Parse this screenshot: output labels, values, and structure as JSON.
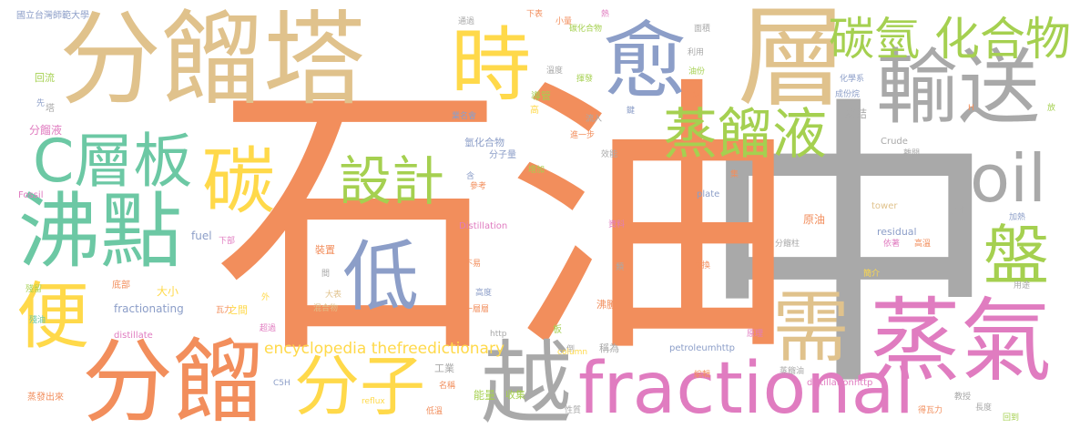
{
  "words": [
    {
      "text": "中",
      "color": "#a9a9a9"
    },
    {
      "text": "石油",
      "color": "#f28e5c"
    },
    {
      "text": "分餾塔",
      "color": "#e0c28c"
    },
    {
      "text": "分餾",
      "color": "#f28e5c"
    },
    {
      "text": "蒸氣",
      "color": "#e07cc0"
    },
    {
      "text": "fractional",
      "color": "#e07cc0"
    },
    {
      "text": "層",
      "color": "#e0c28c"
    },
    {
      "text": "愈",
      "color": "#8c9ec8"
    },
    {
      "text": "時",
      "color": "#ffd94a"
    },
    {
      "text": "輸送",
      "color": "#a9a9a9"
    },
    {
      "text": "沸點",
      "color": "#6cc8a4"
    },
    {
      "text": "C層板",
      "color": "#6cc8a4"
    },
    {
      "text": "碳氫 化合物",
      "color": "#a5d050"
    },
    {
      "text": "蒸餾液",
      "color": "#a5d050"
    },
    {
      "text": "oil",
      "color": "#a9a9a9"
    },
    {
      "text": "碳",
      "color": "#ffd94a"
    },
    {
      "text": "設計",
      "color": "#a5d050"
    },
    {
      "text": "低",
      "color": "#8c9ec8"
    },
    {
      "text": "盤",
      "color": "#a5d050"
    },
    {
      "text": "需",
      "color": "#e0c28c"
    },
    {
      "text": "便",
      "color": "#ffd94a"
    },
    {
      "text": "分子",
      "color": "#ffd94a"
    },
    {
      "text": "越",
      "color": "#a9a9a9"
    },
    {
      "text": "encyclopedia thefreedictionary",
      "color": "#ffd94a"
    },
    {
      "text": "國立台灣師範大學",
      "color": "#8c9ec8"
    },
    {
      "text": "回流",
      "color": "#a5d050"
    },
    {
      "text": "先",
      "color": "#8c9ec8"
    },
    {
      "text": "塔",
      "color": "#a9a9a9"
    },
    {
      "text": "分餾液",
      "color": "#e07cc0"
    },
    {
      "text": "Fossil",
      "color": "#e07cc0"
    },
    {
      "text": "fuel",
      "color": "#8c9ec8"
    },
    {
      "text": "下部",
      "color": "#e07cc0"
    },
    {
      "text": "殘留",
      "color": "#a5d050"
    },
    {
      "text": "底部",
      "color": "#f28e5c"
    },
    {
      "text": "大小",
      "color": "#ffd94a"
    },
    {
      "text": "fractionating",
      "color": "#8c9ec8"
    },
    {
      "text": "瓦力",
      "color": "#f28e5c"
    },
    {
      "text": "之間",
      "color": "#ffd94a"
    },
    {
      "text": "殘油",
      "color": "#6cc8a4"
    },
    {
      "text": "distillate",
      "color": "#e07cc0"
    },
    {
      "text": "C5H",
      "color": "#8c9ec8"
    },
    {
      "text": "蒸發出來",
      "color": "#f28e5c"
    },
    {
      "text": "reflux",
      "color": "#ffd94a"
    },
    {
      "text": "通過",
      "color": "#a9a9a9"
    },
    {
      "text": "小量",
      "color": "#f28e5c"
    },
    {
      "text": "下表",
      "color": "#f28e5c"
    },
    {
      "text": "熱",
      "color": "#e07cc0"
    },
    {
      "text": "碳化合物",
      "color": "#a5d050"
    },
    {
      "text": "溫度",
      "color": "#a9a9a9"
    },
    {
      "text": "揮發",
      "color": "#a5d050"
    },
    {
      "text": "導管",
      "color": "#a5d050"
    },
    {
      "text": "高",
      "color": "#ffd94a"
    },
    {
      "text": "業名會",
      "color": "#8c9ec8"
    },
    {
      "text": "流入",
      "color": "#a9a9a9"
    },
    {
      "text": "鍵",
      "color": "#8c9ec8"
    },
    {
      "text": "進一步",
      "color": "#f28e5c"
    },
    {
      "text": "氫化合物",
      "color": "#8c9ec8"
    },
    {
      "text": "分子量",
      "color": "#8c9ec8"
    },
    {
      "text": "效能",
      "color": "#a9a9a9"
    },
    {
      "text": "增加",
      "color": "#a5d050"
    },
    {
      "text": "參考",
      "color": "#f28e5c"
    },
    {
      "text": "含",
      "color": "#8c9ec8"
    },
    {
      "text": "Distillation",
      "color": "#e07cc0"
    },
    {
      "text": "資料",
      "color": "#e07cc0"
    },
    {
      "text": "不易",
      "color": "#f28e5c"
    },
    {
      "text": "類",
      "color": "#a9a9a9"
    },
    {
      "text": "交換",
      "color": "#f28e5c"
    },
    {
      "text": "裝置",
      "color": "#f28e5c"
    },
    {
      "text": "間",
      "color": "#a9a9a9"
    },
    {
      "text": "大表",
      "color": "#e0c28c"
    },
    {
      "text": "混合物",
      "color": "#e0c28c"
    },
    {
      "text": "高度",
      "color": "#8c9ec8"
    },
    {
      "text": "一層層",
      "color": "#f28e5c"
    },
    {
      "text": "沸騰",
      "color": "#f28e5c"
    },
    {
      "text": "超過",
      "color": "#e07cc0"
    },
    {
      "text": "外",
      "color": "#ffd94a"
    },
    {
      "text": "http",
      "color": "#a9a9a9"
    },
    {
      "text": "板",
      "color": "#a5d050"
    },
    {
      "text": "稱為",
      "color": "#a9a9a9"
    },
    {
      "text": "倒",
      "color": "#a9a9a9"
    },
    {
      "text": "column",
      "color": "#ffd94a"
    },
    {
      "text": "工業",
      "color": "#a9a9a9"
    },
    {
      "text": "能量",
      "color": "#a5d050"
    },
    {
      "text": "收集",
      "color": "#a5d050"
    },
    {
      "text": "名稱",
      "color": "#f28e5c"
    },
    {
      "text": "低溫",
      "color": "#f28e5c"
    },
    {
      "text": "性質",
      "color": "#a9a9a9"
    },
    {
      "text": "編輯",
      "color": "#f28e5c"
    },
    {
      "text": "面積",
      "color": "#a9a9a9"
    },
    {
      "text": "利用",
      "color": "#a9a9a9"
    },
    {
      "text": "油份",
      "color": "#a5d050"
    },
    {
      "text": "化學系",
      "color": "#8c9ec8"
    },
    {
      "text": "成份烷",
      "color": "#8c9ec8"
    },
    {
      "text": "凝結",
      "color": "#a9a9a9"
    },
    {
      "text": "火爐",
      "color": "#f28e5c"
    },
    {
      "text": "H",
      "color": "#f28e5c"
    },
    {
      "text": "放",
      "color": "#a5d050"
    },
    {
      "text": "Crude",
      "color": "#a9a9a9"
    },
    {
      "text": "離開",
      "color": "#a9a9a9"
    },
    {
      "text": "集",
      "color": "#f28e5c"
    },
    {
      "text": "plate",
      "color": "#8c9ec8"
    },
    {
      "text": "tower",
      "color": "#e0c28c"
    },
    {
      "text": "責任",
      "color": "#a9a9a9"
    },
    {
      "text": "原油",
      "color": "#f28e5c"
    },
    {
      "text": "residual",
      "color": "#8c9ec8"
    },
    {
      "text": "加熱",
      "color": "#8c9ec8"
    },
    {
      "text": "分餾柱",
      "color": "#a9a9a9"
    },
    {
      "text": "依著",
      "color": "#e07cc0"
    },
    {
      "text": "高溫",
      "color": "#f28e5c"
    },
    {
      "text": "簡介",
      "color": "#ffd94a"
    },
    {
      "text": "用途",
      "color": "#a9a9a9"
    },
    {
      "text": "原理",
      "color": "#e07cc0"
    },
    {
      "text": "petroleumhttp",
      "color": "#8c9ec8"
    },
    {
      "text": "蒸餾油",
      "color": "#a9a9a9"
    },
    {
      "text": "distillationhttp",
      "color": "#e07cc0"
    },
    {
      "text": "教授",
      "color": "#a9a9a9"
    },
    {
      "text": "得瓦力",
      "color": "#f28e5c"
    },
    {
      "text": "長度",
      "color": "#a9a9a9"
    },
    {
      "text": "回到",
      "color": "#a5d050"
    }
  ]
}
